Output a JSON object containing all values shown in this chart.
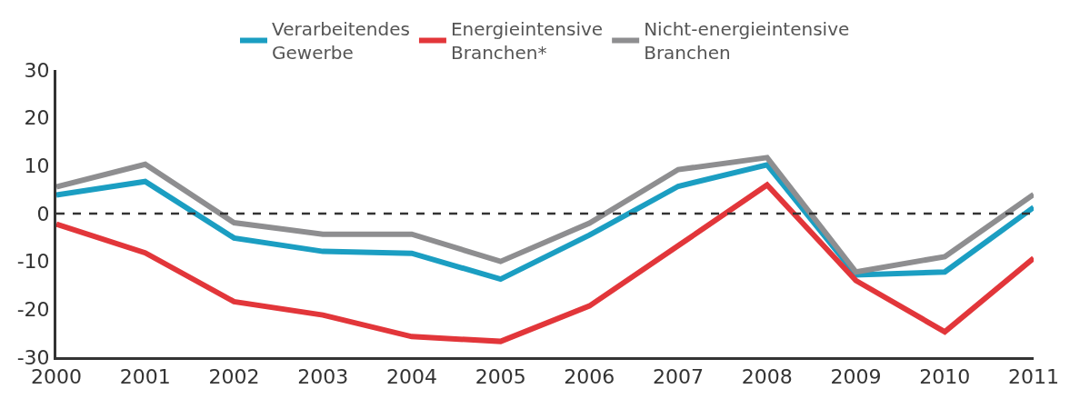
{
  "chart_data": {
    "type": "line",
    "x": [
      2000,
      2001,
      2002,
      2003,
      2004,
      2005,
      2006,
      2007,
      2008,
      2009,
      2010,
      2011
    ],
    "series": [
      {
        "name": "Verarbeitendes Gewerbe",
        "color": "#1b9ec2",
        "values": [
          3.9,
          6.7,
          -5.1,
          -7.9,
          -8.3,
          -13.7,
          -4.5,
          5.7,
          10.2,
          -12.8,
          -12.2,
          1.3
        ]
      },
      {
        "name": "Energieintensive Branchen*",
        "color": "#e2363a",
        "values": [
          -2.2,
          -8.2,
          -18.4,
          -21.2,
          -25.7,
          -26.7,
          -19.3,
          -6.7,
          6,
          -14,
          -24.7,
          -9.3
        ]
      },
      {
        "name": "Nicht-energieintensive Branchen",
        "color": "#8e8e90",
        "values": [
          5.6,
          10.3,
          -1.9,
          -4.3,
          -4.3,
          -10,
          -2,
          9.2,
          11.7,
          -12.2,
          -9,
          4
        ]
      }
    ],
    "xlim": [
      2000,
      2011
    ],
    "xticks": [
      2000,
      2001,
      2002,
      2003,
      2004,
      2005,
      2006,
      2007,
      2008,
      2009,
      2010,
      2011
    ],
    "ylim": [
      -30,
      30
    ],
    "yticks": [
      -30,
      -20,
      -10,
      0,
      10,
      20,
      30
    ],
    "ref_lines": [
      {
        "axis": "y",
        "value": 0,
        "color": "#333333",
        "line_style": "dashed"
      }
    ],
    "legend": "top",
    "marker": "none",
    "line_style": "solid"
  }
}
